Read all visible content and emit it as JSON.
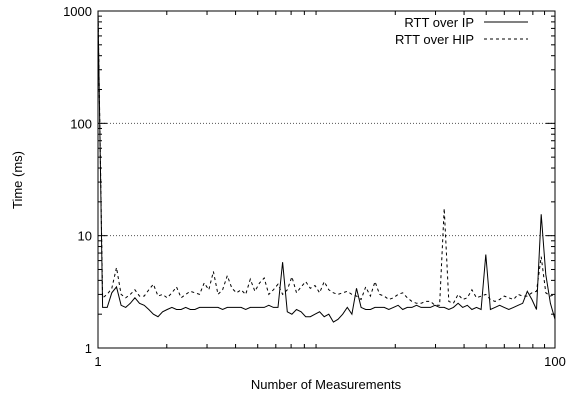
{
  "chart_data": {
    "type": "line",
    "xlabel": "Number of Measurements",
    "ylabel": "Time (ms)",
    "x_scale": "log",
    "y_scale": "log",
    "xlim": [
      1,
      100
    ],
    "ylim": [
      1,
      1000
    ],
    "x_ticks": [
      "1",
      "100"
    ],
    "y_ticks": [
      "1",
      "10",
      "100",
      "1000"
    ],
    "grid": "horizontal dotted at 10, 100",
    "legend_position": "top-right",
    "series": [
      {
        "name": "RTT over IP",
        "style": "solid",
        "color": "#000000",
        "x": [
          1,
          2,
          3,
          4,
          5,
          6,
          7,
          8,
          9,
          10,
          11,
          12,
          13,
          14,
          15,
          16,
          17,
          18,
          19,
          20,
          21,
          22,
          23,
          24,
          25,
          26,
          27,
          28,
          29,
          30,
          31,
          32,
          33,
          34,
          35,
          36,
          37,
          38,
          39,
          40,
          41,
          42,
          43,
          44,
          45,
          46,
          47,
          48,
          49,
          50,
          51,
          52,
          53,
          54,
          55,
          56,
          57,
          58,
          59,
          60,
          61,
          62,
          63,
          64,
          65,
          66,
          67,
          68,
          69,
          70,
          71,
          72,
          73,
          74,
          75,
          76,
          77,
          78,
          79,
          80,
          81,
          82,
          83,
          84,
          85,
          86,
          87,
          88,
          89,
          90,
          91,
          92,
          93,
          94,
          95,
          96,
          97,
          98,
          99,
          100
        ],
        "values": [
          1000,
          2.3,
          2.3,
          3.1,
          3.5,
          2.4,
          2.3,
          2.5,
          2.8,
          2.5,
          2.4,
          2.2,
          2.0,
          1.9,
          2.1,
          2.2,
          2.3,
          2.2,
          2.2,
          2.3,
          2.2,
          2.2,
          2.3,
          2.3,
          2.3,
          2.3,
          2.3,
          2.2,
          2.3,
          2.3,
          2.3,
          2.3,
          2.2,
          2.3,
          2.3,
          2.3,
          2.3,
          2.4,
          2.3,
          2.3,
          5.8,
          2.1,
          2.0,
          2.2,
          2.1,
          1.9,
          1.9,
          2.0,
          2.1,
          1.9,
          2.0,
          1.7,
          1.8,
          2.0,
          2.3,
          2.0,
          3.4,
          2.3,
          2.2,
          2.2,
          2.3,
          2.3,
          2.3,
          2.2,
          2.3,
          2.4,
          2.2,
          2.3,
          2.3,
          2.4,
          2.3,
          2.3,
          2.3,
          2.4,
          2.3,
          2.3,
          2.2,
          2.3,
          2.5,
          2.3,
          2.4,
          2.2,
          2.3,
          2.2,
          6.8,
          2.2,
          2.3,
          2.4,
          2.3,
          2.2,
          2.3,
          2.4,
          2.5,
          3.2,
          2.7,
          2.2,
          15.5,
          4.5,
          2.5,
          1.8
        ]
      },
      {
        "name": "RTT over HIP",
        "style": "dashed",
        "color": "#000000",
        "x": [
          1,
          2,
          3,
          4,
          5,
          6,
          7,
          8,
          9,
          10,
          11,
          12,
          13,
          14,
          15,
          16,
          17,
          18,
          19,
          20,
          21,
          22,
          23,
          24,
          25,
          26,
          27,
          28,
          29,
          30,
          31,
          32,
          33,
          34,
          35,
          36,
          37,
          38,
          39,
          40,
          41,
          42,
          43,
          44,
          45,
          46,
          47,
          48,
          49,
          50,
          51,
          52,
          53,
          54,
          55,
          56,
          57,
          58,
          59,
          60,
          61,
          62,
          63,
          64,
          65,
          66,
          67,
          68,
          69,
          70,
          71,
          72,
          73,
          74,
          75,
          76,
          77,
          78,
          79,
          80,
          81,
          82,
          83,
          84,
          85,
          86,
          87,
          88,
          89,
          90,
          91,
          92,
          93,
          94,
          95,
          96,
          97,
          98,
          99,
          100
        ],
        "values": [
          1000,
          2.8,
          3.0,
          3.4,
          5.2,
          3.0,
          2.8,
          3.0,
          3.3,
          2.9,
          2.9,
          3.3,
          3.7,
          2.9,
          3.0,
          2.8,
          3.1,
          3.5,
          2.8,
          3.0,
          3.2,
          3.1,
          3.0,
          3.8,
          3.3,
          4.8,
          3.0,
          3.3,
          4.4,
          3.4,
          3.1,
          3.3,
          3.0,
          4.1,
          3.2,
          3.8,
          4.2,
          3.0,
          3.3,
          3.7,
          3.0,
          3.3,
          4.3,
          3.1,
          3.5,
          3.9,
          3.4,
          3.6,
          3.1,
          3.9,
          3.3,
          3.1,
          3.0,
          3.1,
          3.2,
          3.0,
          2.9,
          2.7,
          3.5,
          2.9,
          3.9,
          3.0,
          2.9,
          2.7,
          2.8,
          3.0,
          3.1,
          2.8,
          2.6,
          2.5,
          2.5,
          2.6,
          2.6,
          2.4,
          2.4,
          17.5,
          2.6,
          2.5,
          3.0,
          2.7,
          2.8,
          3.3,
          2.8,
          2.9,
          3.0,
          2.7,
          2.6,
          2.7,
          2.9,
          2.8,
          2.7,
          3.0,
          2.9,
          2.9,
          3.1,
          3.2,
          6.5,
          3.1,
          2.9,
          3.0
        ]
      }
    ]
  }
}
